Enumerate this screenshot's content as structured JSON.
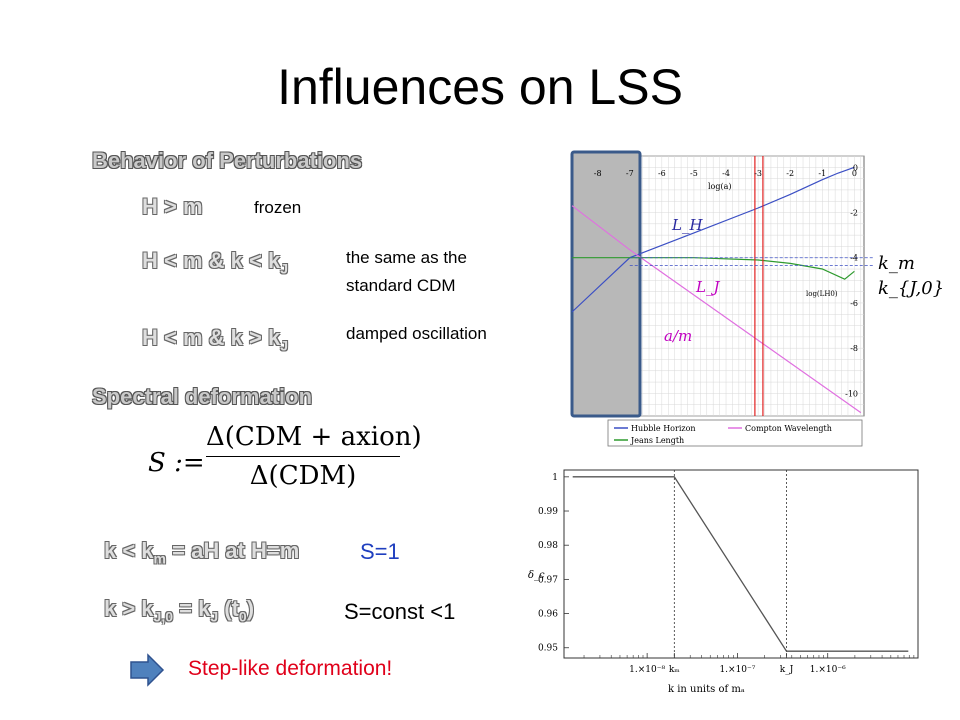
{
  "title": "Influences on LSS",
  "sections": {
    "behavior": "Behavior of Perturbations",
    "spectral": "Spectral deformation"
  },
  "behavior_rows": [
    {
      "cond": "H > m",
      "desc": "frozen"
    },
    {
      "cond_a": "H < m",
      "amp": "&",
      "cond_b": "k < k",
      "cond_b_sub": "J",
      "desc_1": "the same as the",
      "desc_2": "standard CDM"
    },
    {
      "cond_a": "H < m",
      "amp": "&",
      "cond_b": "k > k",
      "cond_b_sub": "J",
      "desc": "damped oscillation"
    }
  ],
  "formula": {
    "lhs": "S :=",
    "numerator": "Δ(CDM + axion)",
    "denominator": "Δ(CDM)"
  },
  "spectral_rows": [
    {
      "k": "k < k",
      "k_sub": "m",
      "eq": "= aH at H=m",
      "result": "S=1"
    },
    {
      "k": "k > k",
      "k_sub": "J,0",
      "eq": "= k",
      "eq_sub": "J",
      "eq_tail": "(t",
      "eq_tail_sub": "0",
      "eq_close": ")",
      "result": "S=const <1"
    }
  ],
  "conclusion": "Step-like deformation!",
  "colors": {
    "accent": "#e0001a",
    "arrow": "#4f81bd",
    "section": "#c9c9c9"
  },
  "figure_top": {
    "xaxis_label": "log(a)",
    "x_ticks": [
      "-8",
      "-7",
      "-6",
      "-5",
      "-4",
      "-3",
      "-2",
      "-1",
      "0"
    ],
    "y_ticks": [
      "0",
      "-2",
      "-4",
      "-6",
      "-8",
      "-10"
    ],
    "y_axis_label": "log(LH0)",
    "curve_labels": {
      "LH": "L_H",
      "LJ": "L_J",
      "am": "a/m"
    },
    "side_labels": {
      "km": "k_m",
      "kJ0": "k_{J,0}"
    },
    "legend": [
      "Hubble Horizon",
      "Compton Wavelength",
      "Jeans Length"
    ]
  },
  "figure_bottom": {
    "y_ticks": [
      "1",
      "0.99",
      "0.98",
      "0.97",
      "0.96",
      "0.95"
    ],
    "y_label": "δ_c",
    "x_ticks": [
      "1.×10⁻⁸",
      "kₘ",
      "1.×10⁻⁷",
      "k_J",
      "1.×10⁻⁶"
    ],
    "x_label": "k in units of mₐ"
  },
  "chart_data": [
    {
      "type": "line",
      "xlabel": "log(a)",
      "ylabel": "log(LH0)",
      "xlim": [
        -8.8,
        0.3
      ],
      "ylim": [
        -11,
        0.5
      ],
      "grid": true,
      "legend_position": "bottom",
      "series": [
        {
          "name": "Hubble Horizon",
          "x": [
            -8.8,
            -7,
            -5,
            -3,
            -2,
            -1,
            -0.5,
            0
          ],
          "y": [
            -6.4,
            -4.0,
            -2.9,
            -1.8,
            -1.2,
            -0.55,
            -0.25,
            0.0
          ]
        },
        {
          "name": "Compton Wavelength",
          "x": [
            -8.8,
            -7,
            -5,
            -3,
            -1,
            0.2
          ],
          "y": [
            -1.7,
            -3.65,
            -5.65,
            -7.65,
            -9.65,
            -10.85
          ]
        },
        {
          "name": "Jeans Length",
          "x": [
            -8.8,
            -7,
            -5,
            -3,
            -2,
            -1,
            -0.3,
            0
          ],
          "y": [
            -4.0,
            -4.0,
            -4.0,
            -4.1,
            -4.25,
            -4.5,
            -4.95,
            -4.6
          ]
        }
      ],
      "vertical_lines": [
        -3.1,
        -2.85
      ],
      "reference_levels": [
        -4.0,
        -4.35
      ]
    },
    {
      "type": "line",
      "xlabel": "k in units of mₐ",
      "ylabel": "δ_c",
      "xscale": "log",
      "ylim": [
        0.947,
        1.002
      ],
      "series": [
        {
          "x": [
            1.5e-09,
            2e-08,
            3.5e-07,
            7.8e-06
          ],
          "y": [
            1.0,
            1.0,
            0.949,
            0.949
          ]
        }
      ],
      "vertical_lines": [
        2e-08,
        3.5e-07
      ]
    }
  ]
}
